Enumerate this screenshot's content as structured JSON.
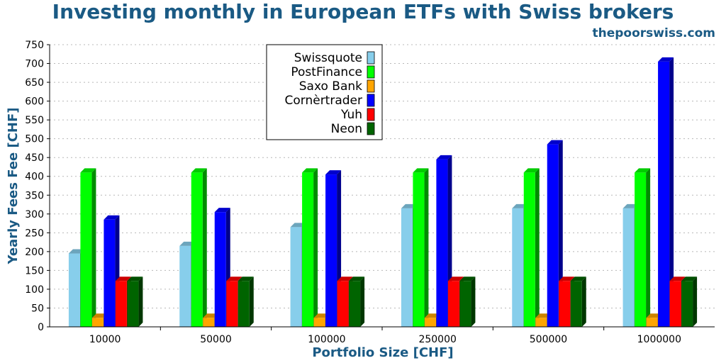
{
  "chart_data": {
    "type": "bar",
    "title": "Investing monthly in European ETFs with Swiss brokers",
    "subtitle": "thepoorswiss.com",
    "xlabel": "Portfolio Size [CHF]",
    "ylabel": "Yearly Fees Fee [CHF]",
    "ylim": [
      0,
      750
    ],
    "yticks": [
      "0",
      "50",
      "100",
      "150",
      "200",
      "250",
      "300",
      "350",
      "400",
      "450",
      "500",
      "550",
      "600",
      "650",
      "700",
      "750"
    ],
    "grid": true,
    "legend_position": "top-center",
    "categories": [
      "10000",
      "50000",
      "100000",
      "250000",
      "500000",
      "1000000"
    ],
    "series": [
      {
        "name": "Swissquote",
        "color": "#87ceeb",
        "values": [
          195,
          215,
          265,
          315,
          315,
          315
        ]
      },
      {
        "name": "PostFinance",
        "color": "#00ff00",
        "values": [
          410,
          410,
          410,
          410,
          410,
          410
        ]
      },
      {
        "name": "Saxo Bank",
        "color": "#ffa500",
        "values": [
          24,
          24,
          24,
          24,
          24,
          24
        ]
      },
      {
        "name": "Cornèrtrader",
        "color": "#0000ff",
        "values": [
          285,
          305,
          405,
          445,
          485,
          705
        ]
      },
      {
        "name": "Yuh",
        "color": "#ff0000",
        "values": [
          122,
          122,
          122,
          122,
          122,
          122
        ]
      },
      {
        "name": "Neon",
        "color": "#006400",
        "values": [
          122,
          122,
          122,
          122,
          122,
          122
        ]
      }
    ]
  }
}
